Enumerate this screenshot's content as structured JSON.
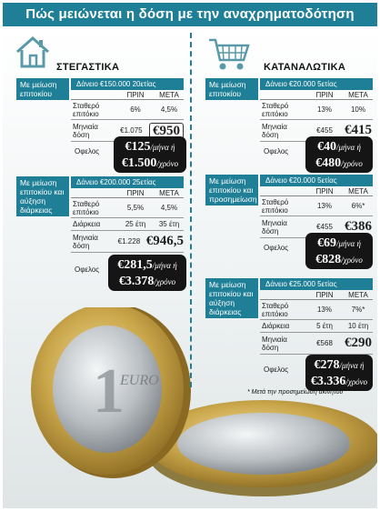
{
  "title": "Πώς μειώνεται η δόση με την αναχρηματοδότηση",
  "columns": {
    "before": "ΠΡΙΝ",
    "after": "ΜΕΤΑ"
  },
  "ofelos_label": "Οφελος",
  "mortgage": {
    "heading": "ΣΤΕΓΑΣΤΙΚΑ",
    "icon": "house-icon",
    "panels": [
      {
        "label": "Με μείωση επιτοκίου",
        "header": "Δάνειο €150.000 20ετίας",
        "rows": [
          {
            "label": "Σταθερό επιτόκιο",
            "before": "6%",
            "after": "4,5%"
          },
          {
            "label": "Μηνιαία δόση",
            "before": "€1.075",
            "after": "€950"
          }
        ],
        "savings_monthly": "€125",
        "savings_monthly_unit": "/μήνα ή",
        "savings_yearly": "€1.500",
        "savings_yearly_unit": "/χρόνο"
      },
      {
        "label": "Με μείωση επιτοκίου και αύξηση διάρκειας",
        "header": "Δάνειο €200.000 25ετίας",
        "rows": [
          {
            "label": "Σταθερό επιτόκιο",
            "before": "5,5%",
            "after": "4,5%"
          },
          {
            "label": "Διάρκεια",
            "before": "25 έτη",
            "after": "35 έτη"
          },
          {
            "label": "Μηνιαία δόση",
            "before": "€1.228",
            "after": "€946,5"
          }
        ],
        "savings_monthly": "€281,5",
        "savings_monthly_unit": "/μήνα ή",
        "savings_yearly": "€3.378",
        "savings_yearly_unit": "/χρόνο"
      }
    ]
  },
  "consumer": {
    "heading": "ΚΑΤΑΝΑΛΩΤΙΚΑ",
    "icon": "shopping-cart-icon",
    "panels": [
      {
        "label": "Με μείωση επιτοκίου",
        "header": "Δάνειο €20.000 5ετίας",
        "rows": [
          {
            "label": "Σταθερό επιτόκιο",
            "before": "13%",
            "after": "10%"
          },
          {
            "label": "Μηνιαία δόση",
            "before": "€455",
            "after": "€415"
          }
        ],
        "savings_monthly": "€40",
        "savings_monthly_unit": "/μήνα ή",
        "savings_yearly": "€480",
        "savings_yearly_unit": "/χρόνο"
      },
      {
        "label": "Με μείωση επιτοκίου και προσημείωση",
        "header": "Δάνειο €20.000 5ετίας",
        "rows": [
          {
            "label": "Σταθερό επιτόκιο",
            "before": "13%",
            "after": "6%*"
          },
          {
            "label": "Μηνιαία δόση",
            "before": "€455",
            "after": "€386"
          }
        ],
        "savings_monthly": "€69",
        "savings_monthly_unit": "/μήνα ή",
        "savings_yearly": "€828",
        "savings_yearly_unit": "/χρόνο"
      },
      {
        "label": "Με μείωση επιτοκίου και αύξηση διάρκειας",
        "header": "Δάνειο €25.000 5ετίας",
        "rows": [
          {
            "label": "Σταθερό επιτόκιο",
            "before": "13%",
            "after": "7%*"
          },
          {
            "label": "Διάρκεια",
            "before": "5 έτη",
            "after": "10 έτη"
          },
          {
            "label": "Μηνιαία δόση",
            "before": "€568",
            "after": "€290"
          }
        ],
        "savings_monthly": "€278",
        "savings_monthly_unit": "/μήνα ή",
        "savings_yearly": "€3.336",
        "savings_yearly_unit": "/χρόνο"
      }
    ]
  },
  "footnote": "* Μετά την προσημείωση ακινήτου",
  "colors": {
    "accent": "#1f7f96",
    "dark": "#151515",
    "coin_gold": "#c9a64a",
    "coin_silver": "#b9bec2"
  },
  "coin_icon": "euro-coin-icon"
}
